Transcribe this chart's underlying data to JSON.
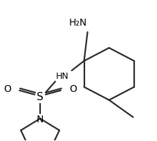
{
  "bg_color": "#ffffff",
  "line_color": "#2a2a2a",
  "line_width": 1.6,
  "font_size": 9,
  "fig_width": 2.28,
  "fig_height": 2.05,
  "dpi": 100,
  "NH2": "H₂N",
  "HN": "HN",
  "S": "S",
  "N": "N",
  "O": "O"
}
